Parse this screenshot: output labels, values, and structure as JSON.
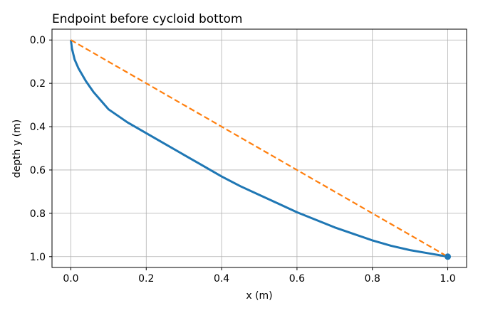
{
  "chart_data": {
    "type": "line",
    "title": "Endpoint before cycloid bottom",
    "xlabel": "x (m)",
    "ylabel": "depth y (m)",
    "xlim": [
      -0.05,
      1.05
    ],
    "ylim": [
      1.05,
      -0.05
    ],
    "y_inverted": true,
    "grid": true,
    "x_ticks": [
      0.0,
      0.2,
      0.4,
      0.6,
      0.8,
      1.0
    ],
    "x_tick_labels": [
      "0.0",
      "0.2",
      "0.4",
      "0.6",
      "0.8",
      "1.0"
    ],
    "y_ticks": [
      0.0,
      0.2,
      0.4,
      0.6,
      0.8,
      1.0
    ],
    "y_tick_labels": [
      "0.0",
      "0.2",
      "0.4",
      "0.6",
      "0.8",
      "1.0"
    ],
    "series": [
      {
        "style": "solid",
        "color": "#1f77b4",
        "x": [
          0.0,
          0.003,
          0.01,
          0.02,
          0.04,
          0.06,
          0.08,
          0.1,
          0.15,
          0.2,
          0.25,
          0.3,
          0.35,
          0.4,
          0.45,
          0.5,
          0.55,
          0.6,
          0.65,
          0.7,
          0.75,
          0.8,
          0.85,
          0.9,
          0.95,
          1.0
        ],
        "y": [
          0.0,
          0.04,
          0.09,
          0.13,
          0.19,
          0.24,
          0.28,
          0.32,
          0.38,
          0.43,
          0.48,
          0.53,
          0.58,
          0.63,
          0.675,
          0.715,
          0.755,
          0.795,
          0.83,
          0.865,
          0.895,
          0.925,
          0.95,
          0.97,
          0.985,
          1.0
        ]
      },
      {
        "style": "dashed",
        "color": "#ff7f0e",
        "x": [
          0.0,
          1.0
        ],
        "y": [
          0.0,
          1.0
        ]
      }
    ],
    "markers": [
      {
        "x": 1.0,
        "y": 1.0,
        "color": "#1f77b4"
      }
    ]
  }
}
